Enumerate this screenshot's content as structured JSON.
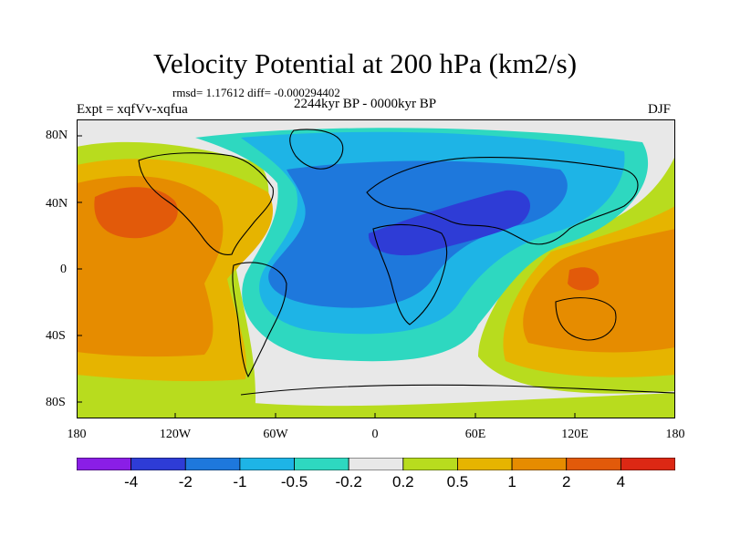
{
  "title": "Velocity Potential at 200 hPa (km2/s)",
  "stats": "rmsd= 1.17612  diff= -0.000294402",
  "expt": "Expt = xqfVv-xqfua",
  "period": "2244kyr BP - 0000kyr BP",
  "season": "DJF",
  "y_ticks": [
    "80N",
    "40N",
    "0",
    "40S",
    "80S"
  ],
  "x_ticks": [
    "180",
    "120W",
    "60W",
    "0",
    "60E",
    "120E",
    "180"
  ],
  "colorbar": {
    "colors": [
      "#8a1ee6",
      "#2e3cd6",
      "#1e78dc",
      "#1eb4e6",
      "#2ed8c0",
      "#e8e8e8",
      "#b8dc1e",
      "#e6b400",
      "#e68c00",
      "#e25a0a",
      "#dc2814"
    ],
    "labels": [
      "-4",
      "-2",
      "-1",
      "-0.5",
      "-0.2",
      "0.2",
      "0.5",
      "1",
      "2",
      "4"
    ]
  },
  "palette": {
    "gray": "#e8e8e8",
    "lime": "#b8dc1e",
    "gold": "#e6b400",
    "orange": "#e68c00",
    "red": "#e25a0a",
    "teal": "#2ed8c0",
    "cyan": "#1eb4e6",
    "blue": "#1e78dc",
    "navy": "#2e3cd6"
  }
}
